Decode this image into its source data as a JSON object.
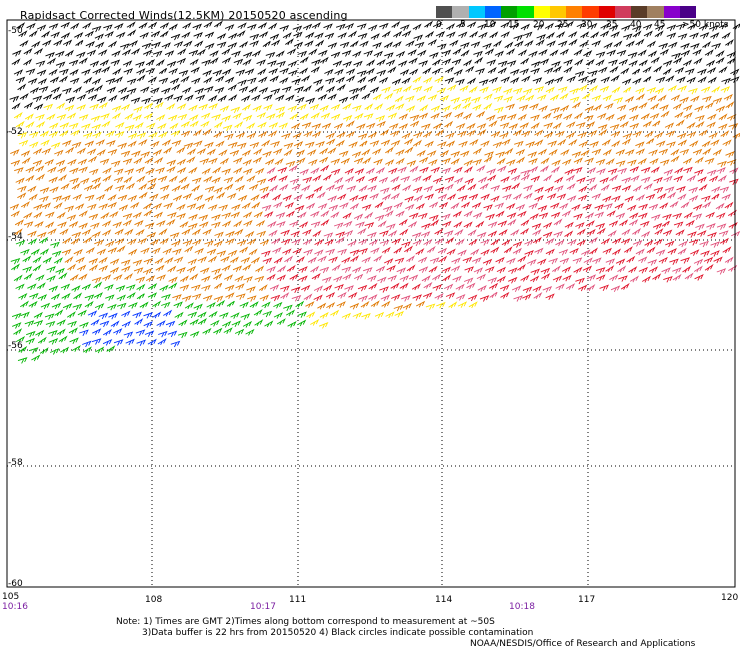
{
  "title": "Rapidsact Corrected Winds(12.5KM) 20150520 ascending",
  "legend": {
    "colors": [
      "#505050",
      "#b0b0b0",
      "#00c8ff",
      "#0064ff",
      "#00a000",
      "#00e000",
      "#ffff00",
      "#ffc800",
      "#ff8000",
      "#ff3c00",
      "#e00000",
      "#d03c5c",
      "#5a3c28",
      "#a08060",
      "#8800cc",
      "#4a0088"
    ],
    "labels": [
      "0",
      "5",
      "10",
      "15",
      "20",
      "25",
      "30",
      "35",
      "40",
      "45",
      ">50 knots"
    ]
  },
  "axes": {
    "lat_labels": [
      "-50",
      "-52",
      "-54",
      "-56",
      "-58",
      "-60"
    ],
    "lon_labels": [
      "105",
      "108",
      "111",
      "114",
      "117",
      "120"
    ],
    "time_labels": [
      "10:16",
      "10:17",
      "10:18"
    ]
  },
  "notes": {
    "line1": "Note: 1) Times are GMT 2)Times along bottom correspond to measurement at ~50S",
    "line2": "3)Data buffer is 22 hrs from 20150520 4) Black circles indicate possible contamination",
    "credit": "NOAA/NESDIS/Office of Research and Applications"
  },
  "wind_colors": {
    "black": "#000000",
    "yellow": "#ffe600",
    "orange": "#e07800",
    "red": "#e0142a",
    "pink": "#e0507a",
    "green": "#00b400",
    "blue": "#0032ff"
  }
}
